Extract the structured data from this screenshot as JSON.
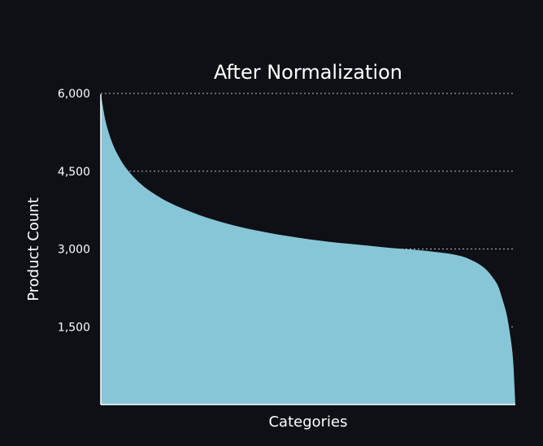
{
  "chart_data": {
    "type": "area",
    "title": "After Normalization",
    "xlabel": "Categories",
    "ylabel": "Product Count",
    "ylim": [
      0,
      6000
    ],
    "yticks": [
      1500,
      3000,
      4500,
      6000
    ],
    "ytick_labels": [
      "1,500",
      "3,000",
      "4,500",
      "6,000"
    ],
    "grid": "horizontal-dotted",
    "x": [
      0,
      0.01,
      0.02,
      0.03,
      0.04,
      0.05,
      0.06,
      0.08,
      0.1,
      0.12,
      0.15,
      0.18,
      0.21,
      0.25,
      0.3,
      0.35,
      0.4,
      0.45,
      0.5,
      0.55,
      0.6,
      0.65,
      0.7,
      0.75,
      0.8,
      0.84,
      0.87,
      0.89,
      0.91,
      0.93,
      0.95,
      0.96,
      0.97,
      0.98,
      0.99,
      0.995,
      1.0
    ],
    "series": [
      {
        "values": [
          6000,
          5520,
          5220,
          5000,
          4830,
          4690,
          4570,
          4380,
          4230,
          4110,
          3960,
          3840,
          3740,
          3620,
          3500,
          3400,
          3320,
          3250,
          3190,
          3140,
          3100,
          3060,
          3020,
          2990,
          2950,
          2910,
          2860,
          2800,
          2720,
          2600,
          2400,
          2250,
          2000,
          1700,
          1200,
          800,
          0
        ],
        "color": "#87c6d6"
      }
    ],
    "colors": {
      "background": "#0e1016",
      "area": "#87c6d6",
      "text": "#ffffff",
      "grid": "#b8bcc4"
    }
  }
}
